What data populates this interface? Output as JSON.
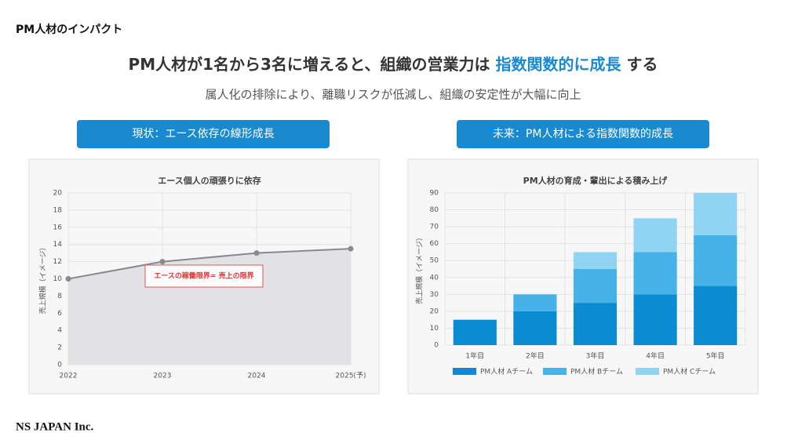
{
  "page_label": "PM人材のインパクト",
  "headline": {
    "before": "PM人材が1名から3名に増えると、組織の営業力は",
    "highlight": "指数関数的に成長",
    "after": "する"
  },
  "subtitle": "属人化の排除により、離職リスクが低減し、組織の安定性が大幅に向上",
  "footer": "NS JAPAN Inc.",
  "chart_data": [
    {
      "type": "line",
      "banner": "現状：エース依存の線形成長",
      "title": "エース個人の頑張りに依存",
      "y_label": "売上規模（イメージ）",
      "categories": [
        "2022",
        "2023",
        "2024",
        "2025(予)"
      ],
      "values": [
        10,
        12,
        13,
        13.5
      ],
      "color": "#8a8a8e",
      "area_color": "#e2e2e5",
      "ylim": [
        0,
        20
      ],
      "yticks": [
        0,
        2,
        4,
        6,
        8,
        10,
        12,
        14,
        16,
        18,
        20
      ],
      "grid": true,
      "annotation": "エースの稼働限界= 売上の限界"
    },
    {
      "type": "stacked_bar",
      "banner": "未来：PM人材による指数関数的成長",
      "title": "PM人材の育成・輩出による積み上げ",
      "y_label": "売上規模（イメージ）",
      "categories": [
        "1年目",
        "2年目",
        "3年目",
        "4年目",
        "5年目"
      ],
      "series": [
        {
          "name": "PM人材 Aチーム",
          "color": "#0b8bd2",
          "values": [
            15,
            20,
            25,
            30,
            35
          ]
        },
        {
          "name": "PM人材 Bチーム",
          "color": "#45b2e8",
          "values": [
            null,
            10,
            20,
            25,
            30
          ]
        },
        {
          "name": "PM人材 Cチーム",
          "color": "#8fd4f3",
          "values": [
            null,
            null,
            10,
            20,
            25
          ]
        }
      ],
      "ylim": [
        0,
        90
      ],
      "yticks": [
        0,
        10,
        20,
        30,
        40,
        50,
        60,
        70,
        80,
        90
      ],
      "grid": true,
      "legend": "bottom"
    }
  ]
}
